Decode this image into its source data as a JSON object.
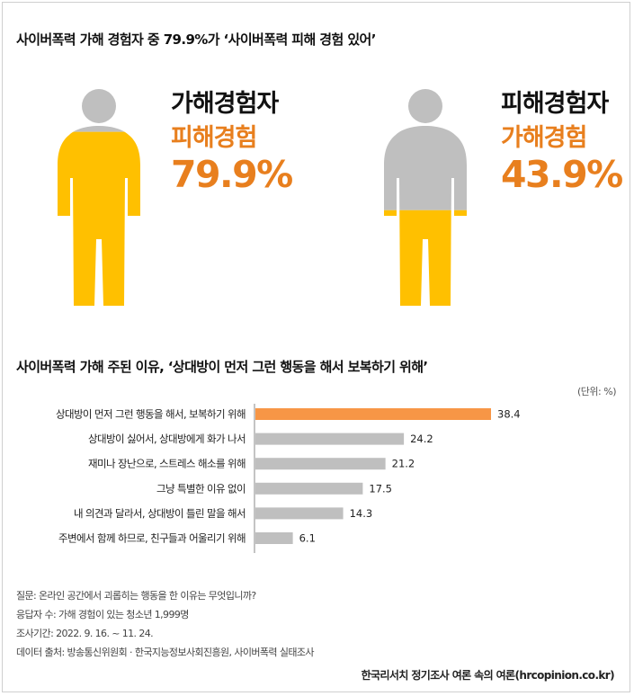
{
  "section1": {
    "title": "사이버폭력 가해 경험자 중 79.9%가 ‘사이버폭력 피해 경험 있어’",
    "left": {
      "role": "가해경험자",
      "experience": "피해경험",
      "percent_label": "79.9%",
      "fill_fraction": 0.799
    },
    "right": {
      "role": "피해경험자",
      "experience": "가해경험",
      "percent_label": "43.9%",
      "fill_fraction": 0.439
    }
  },
  "colors": {
    "accent_yellow": "#ffc000",
    "figure_gray": "#bfbfbf",
    "highlight_orange": "#f79646",
    "text_orange": "#e87f1e",
    "bar_gray": "#bfbfbf"
  },
  "section2": {
    "title": "사이버폭력 가해 주된 이유, ‘상대방이 먼저 그런 행동을 해서 보복하기 위해’",
    "unit": "(단위: %)"
  },
  "chart_data": {
    "type": "bar",
    "orientation": "horizontal",
    "categories": [
      "상대방이 먼저 그런 행동을 해서, 보복하기 위해",
      "상대방이 싫어서, 상대방에게 화가 나서",
      "재미나 장난으로, 스트레스 해소를 위해",
      "그냥 특별한 이유 없이",
      "내 의견과 달라서, 상대방이 틀린 말을 해서",
      "주변에서 함께 하므로, 친구들과 어울리기 위해"
    ],
    "values": [
      38.4,
      24.2,
      21.2,
      17.5,
      14.3,
      6.1
    ],
    "value_labels": [
      "38.4",
      "24.2",
      "21.2",
      "17.5",
      "14.3",
      "6.1"
    ],
    "highlight_index": 0,
    "xlim": [
      0,
      40
    ]
  },
  "footnotes": [
    "질문: 온라인 공간에서 괴롭히는 행동을 한 이유는 무엇입니까?",
    "응답자 수: 가해 경험이 있는 청소년 1,999명",
    "조사기간: 2022. 9. 16. ~ 11. 24.",
    "데이터 출처: 방송통신위원회 · 한국지능정보사회진흥원, 사이버폭력 실태조사"
  ],
  "source": "한국리서치 정기조사 여론 속의 여론(hrcopinion.co.kr)"
}
